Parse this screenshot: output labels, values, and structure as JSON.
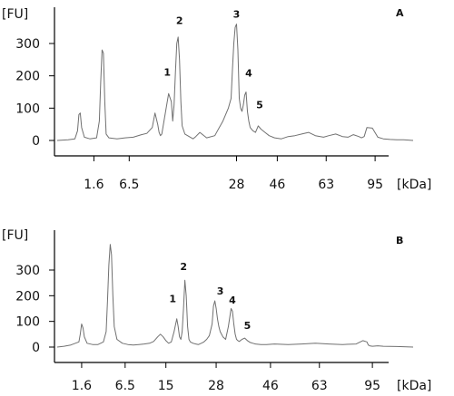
{
  "chart_data": [
    {
      "type": "line",
      "panel_label": "A",
      "ylabel": "[FU]",
      "xlabel": "[kDa]",
      "y_ticks": [
        0,
        100,
        200,
        300
      ],
      "ylim": [
        -10,
        390
      ],
      "x_ticks": [
        "1.6",
        "6.5",
        "28",
        "46",
        "63",
        "95"
      ],
      "x_tick_positions_s": [
        27,
        53,
        132,
        162,
        198,
        234
      ],
      "xlim_s": [
        0,
        262
      ],
      "color": "#707070",
      "series": [
        {
          "x_s": [
            0,
            8,
            13,
            15,
            16,
            17,
            18,
            20,
            24,
            29,
            31,
            32,
            33,
            34,
            35,
            36,
            38,
            44,
            50,
            56,
            62,
            66,
            70,
            72,
            74,
            75,
            76,
            77,
            79,
            82,
            84,
            85,
            86,
            87,
            88,
            89,
            90,
            91,
            92,
            94,
            98,
            100,
            102,
            105,
            110,
            116,
            118,
            122,
            126,
            128,
            129,
            130,
            131,
            132,
            133,
            134,
            135,
            136,
            137,
            138,
            139,
            140,
            141,
            142,
            144,
            146,
            148,
            150,
            153,
            156,
            160,
            165,
            170,
            175,
            180,
            185,
            190,
            196,
            200,
            205,
            210,
            214,
            218,
            222,
            224,
            226,
            228,
            232,
            236,
            240,
            245,
            250,
            255,
            262
          ],
          "y": [
            0,
            2,
            5,
            30,
            80,
            85,
            40,
            10,
            5,
            8,
            60,
            180,
            280,
            270,
            120,
            20,
            8,
            5,
            8,
            10,
            18,
            22,
            40,
            85,
            50,
            25,
            15,
            20,
            70,
            145,
            120,
            60,
            110,
            210,
            300,
            320,
            250,
            120,
            45,
            20,
            10,
            5,
            12,
            25,
            8,
            15,
            30,
            60,
            100,
            130,
            220,
            300,
            350,
            360,
            280,
            130,
            100,
            90,
            110,
            140,
            150,
            90,
            60,
            40,
            30,
            25,
            45,
            35,
            25,
            15,
            8,
            5,
            12,
            15,
            20,
            25,
            15,
            10,
            15,
            20,
            12,
            10,
            18,
            12,
            8,
            12,
            40,
            38,
            10,
            5,
            3,
            2,
            2,
            0
          ]
        }
      ],
      "peak_labels": [
        {
          "text": "1",
          "x_s": 81,
          "y": 200
        },
        {
          "text": "2",
          "x_s": 90,
          "y": 360
        },
        {
          "text": "3",
          "x_s": 132,
          "y": 380
        },
        {
          "text": "4",
          "x_s": 141,
          "y": 198
        },
        {
          "text": "5",
          "x_s": 149,
          "y": 100
        }
      ]
    },
    {
      "type": "line",
      "panel_label": "B",
      "ylabel": "[FU]",
      "xlabel": "[kDa]",
      "y_ticks": [
        0,
        100,
        200,
        300
      ],
      "ylim": [
        -15,
        410
      ],
      "x_ticks": [
        "1.6",
        "6.5",
        "15",
        "28",
        "46",
        "63",
        "95"
      ],
      "x_tick_positions_s": [
        18,
        50,
        80,
        117,
        157,
        193,
        232
      ],
      "xlim_s": [
        0,
        262
      ],
      "color": "#707070",
      "series": [
        {
          "x_s": [
            0,
            5,
            10,
            16,
            17,
            18,
            19,
            20,
            22,
            26,
            30,
            34,
            36,
            37,
            38,
            39,
            40,
            41,
            42,
            44,
            48,
            52,
            56,
            60,
            64,
            68,
            71,
            74,
            76,
            78,
            80,
            82,
            84,
            86,
            88,
            89,
            90,
            91,
            92,
            93,
            94,
            95,
            96,
            97,
            98,
            100,
            102,
            104,
            106,
            108,
            110,
            112,
            114,
            115,
            116,
            117,
            118,
            119,
            120,
            122,
            124,
            126,
            128,
            129,
            130,
            131,
            132,
            133,
            134,
            136,
            138,
            140,
            142,
            144,
            146,
            150,
            154,
            160,
            170,
            180,
            190,
            200,
            210,
            220,
            225,
            228,
            229,
            230,
            232,
            236,
            240,
            250,
            262
          ],
          "y": [
            0,
            3,
            8,
            20,
            50,
            90,
            75,
            40,
            15,
            10,
            10,
            20,
            60,
            180,
            320,
            400,
            360,
            200,
            80,
            30,
            15,
            10,
            8,
            10,
            12,
            15,
            22,
            40,
            50,
            40,
            25,
            15,
            20,
            60,
            110,
            80,
            40,
            30,
            60,
            150,
            260,
            200,
            80,
            30,
            20,
            15,
            12,
            10,
            15,
            20,
            30,
            45,
            90,
            160,
            180,
            150,
            110,
            80,
            60,
            40,
            30,
            80,
            150,
            140,
            90,
            50,
            30,
            25,
            22,
            30,
            35,
            25,
            18,
            15,
            12,
            10,
            10,
            12,
            10,
            12,
            15,
            12,
            10,
            12,
            25,
            20,
            8,
            5,
            3,
            5,
            3,
            2,
            0
          ]
        }
      ],
      "peak_labels": [
        {
          "text": "1",
          "x_s": 85,
          "y": 175
        },
        {
          "text": "2",
          "x_s": 93,
          "y": 300
        },
        {
          "text": "3",
          "x_s": 120,
          "y": 205
        },
        {
          "text": "4",
          "x_s": 129,
          "y": 170
        },
        {
          "text": "5",
          "x_s": 140,
          "y": 70
        }
      ]
    }
  ]
}
